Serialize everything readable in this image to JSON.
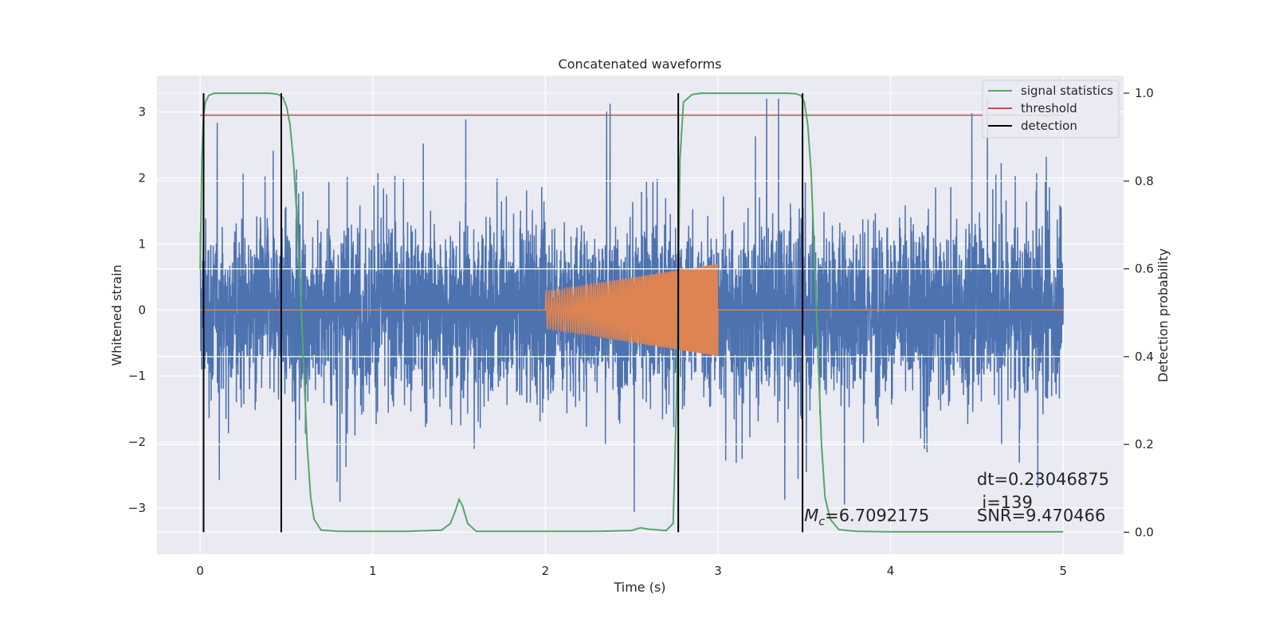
{
  "chart_data": {
    "type": "line",
    "title": "Concatenated waveforms",
    "xlabel": "Time (s)",
    "ylabel": "Whitened strain",
    "ylabel_right": "Detection probability",
    "xlim": [
      -0.25,
      5.35
    ],
    "ylim": [
      -3.7,
      3.55
    ],
    "ylim_right": [
      -0.05,
      1.04
    ],
    "xticks": [
      0,
      1,
      2,
      3,
      4,
      5
    ],
    "yticks": [
      -3,
      -2,
      -1,
      0,
      1,
      2,
      3
    ],
    "yticks_right": [
      0.0,
      0.2,
      0.4,
      0.6,
      0.8,
      1.0
    ],
    "yticks_right_labels": [
      "0.0",
      "0.2",
      "0.4",
      "0.6",
      "0.8",
      "1.0"
    ],
    "grid": true,
    "legend_position": "top-right",
    "colors": {
      "strain": "#4c72b0",
      "template": "#dd8452",
      "signal_statistics": "#55a868",
      "threshold": "#c44e52",
      "detection": "#000000",
      "background": "#eaeaf2"
    },
    "series": [
      {
        "name": "signal statistics",
        "axis": "right",
        "x": [
          0.0,
          0.01,
          0.02,
          0.03,
          0.05,
          0.08,
          0.12,
          0.2,
          0.3,
          0.4,
          0.45,
          0.48,
          0.5,
          0.52,
          0.54,
          0.56,
          0.58,
          0.6,
          0.62,
          0.64,
          0.66,
          0.7,
          0.8,
          1.0,
          1.2,
          1.4,
          1.45,
          1.48,
          1.5,
          1.52,
          1.55,
          1.6,
          1.8,
          2.0,
          2.3,
          2.5,
          2.55,
          2.6,
          2.7,
          2.74,
          2.76,
          2.78,
          2.8,
          2.85,
          2.9,
          3.0,
          3.2,
          3.4,
          3.45,
          3.48,
          3.5,
          3.52,
          3.54,
          3.56,
          3.58,
          3.6,
          3.62,
          3.65,
          3.7,
          3.8,
          4.0,
          4.5,
          5.0
        ],
        "values": [
          0.6,
          0.85,
          0.95,
          0.98,
          0.995,
          1.0,
          1.0,
          1.0,
          1.0,
          1.0,
          0.998,
          0.99,
          0.97,
          0.93,
          0.85,
          0.72,
          0.56,
          0.38,
          0.2,
          0.08,
          0.03,
          0.005,
          0.002,
          0.002,
          0.002,
          0.005,
          0.02,
          0.05,
          0.075,
          0.06,
          0.02,
          0.002,
          0.002,
          0.002,
          0.002,
          0.004,
          0.01,
          0.007,
          0.004,
          0.02,
          0.3,
          0.85,
          0.98,
          0.997,
          1.0,
          1.0,
          1.0,
          1.0,
          0.999,
          0.995,
          0.98,
          0.93,
          0.82,
          0.62,
          0.4,
          0.2,
          0.08,
          0.03,
          0.006,
          0.002,
          0.001,
          0.001,
          0.001
        ]
      },
      {
        "name": "threshold",
        "axis": "right",
        "x": [
          0.0,
          5.0
        ],
        "values": [
          0.95,
          0.95
        ]
      },
      {
        "name": "detection",
        "axis": "right",
        "type": "vlines",
        "x": [
          0.02,
          0.47,
          2.77,
          3.49
        ],
        "range": [
          0.0,
          1.0
        ]
      }
    ],
    "strain_series": {
      "axis": "left",
      "x_range": [
        0.0,
        5.0
      ],
      "typical_amplitude": 0.75,
      "max_amplitude": 3.2,
      "min_amplitude": -3.3
    },
    "template_series": {
      "axis": "left",
      "x_range": [
        2.0,
        3.0
      ],
      "amplitude_start": 0.28,
      "amplitude_end": 0.7
    },
    "annotations": [
      {
        "text": "dt=0.23046875",
        "x": 4.5,
        "y": -2.65
      },
      {
        "text": "i=139",
        "x": 4.53,
        "y": -3.0
      },
      {
        "text": "SNR=9.470466",
        "x": 4.5,
        "y": -3.2
      },
      {
        "text_prefix": "M",
        "text_sub": "c",
        "text_rest": "=6.7092175",
        "x": 3.5,
        "y": -3.2
      }
    ]
  }
}
